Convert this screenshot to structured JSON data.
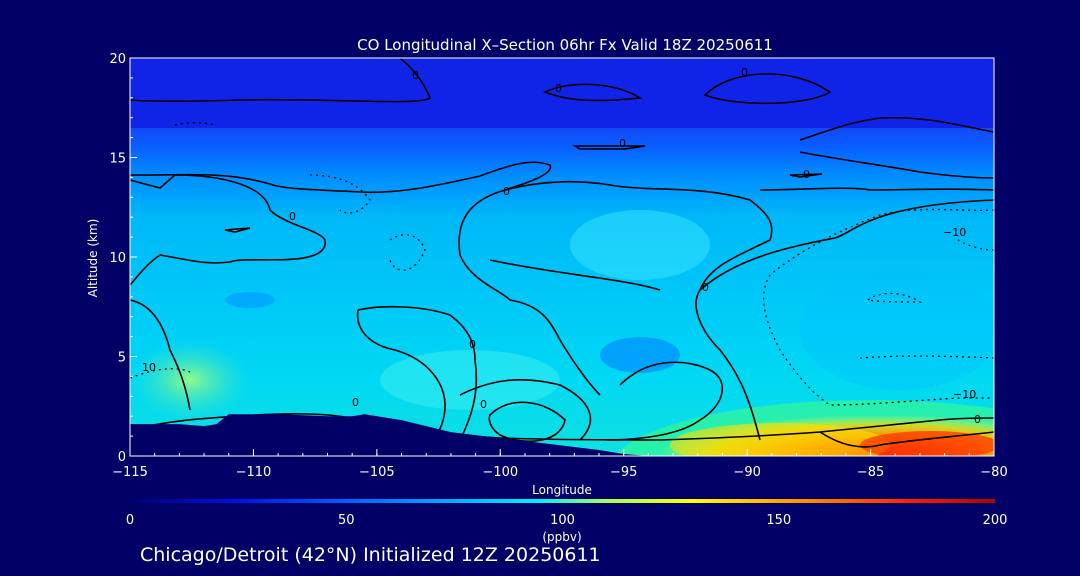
{
  "chart_data": {
    "type": "heatmap",
    "title": "CO Longitudinal X–Section 06hr  Fx Valid 18Z 20250611",
    "footer": "Chicago/Detroit (42°N) Initialized 12Z 20250611",
    "xlabel": "Longitude",
    "ylabel": "Altitude (km)",
    "xlim": [
      -115,
      -80
    ],
    "ylim": [
      0,
      20
    ],
    "x_ticks": [
      "−115",
      "−110",
      "−105",
      "−100",
      "−95",
      "−90",
      "−85",
      "−80"
    ],
    "y_ticks": [
      "0",
      "5",
      "10",
      "15",
      "20"
    ],
    "colorbar": {
      "min": 0,
      "max": 200,
      "ticks": [
        "0",
        "50",
        "100",
        "150",
        "200"
      ],
      "unit": "(ppbv)"
    },
    "contour_labels": [
      "0",
      "−10",
      "10"
    ],
    "terrain_top_km": [
      1.6,
      1.6,
      1.6,
      1.5,
      1.6,
      2.1,
      2.1,
      2.0,
      2.0,
      2.1,
      1.8,
      1.2,
      0.9,
      0.6,
      0.3,
      0.1,
      0.0
    ],
    "terrain_lon": [
      -115,
      -114,
      -113,
      -112,
      -111.5,
      -111,
      -109,
      -107,
      -106,
      -105.5,
      -104,
      -102,
      -100,
      -98,
      -96,
      -95,
      -94
    ],
    "grid": false
  }
}
